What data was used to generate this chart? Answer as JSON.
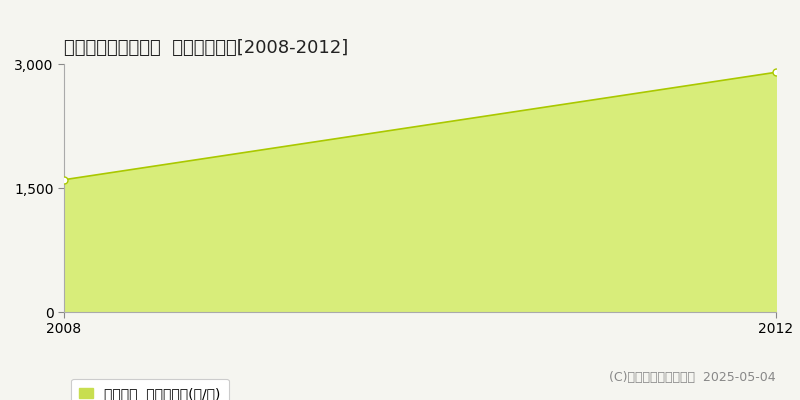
{
  "title": "東伯郡北栄町西高尾  林地価格推移[2008-2012]",
  "x": [
    2008,
    2012
  ],
  "y": [
    1600,
    2900
  ],
  "fill_color": "#d8ed7a",
  "fill_alpha": 1.0,
  "line_color": "#aac800",
  "marker_color": "#aac800",
  "marker_face": "white",
  "ylim": [
    0,
    3000
  ],
  "xlim": [
    2008,
    2012
  ],
  "yticks": [
    0,
    1500,
    3000
  ],
  "xticks": [
    2008,
    2012
  ],
  "grid_color": "#bbbbbb",
  "bg_color": "#f5f5f0",
  "plot_bg_color": "#f5f5f0",
  "legend_label": "林地価格  平均坪単価(円/坪)",
  "legend_color": "#c8de50",
  "copyright": "(C)土地価格ドットコム  2025-05-04",
  "title_fontsize": 13,
  "tick_fontsize": 10,
  "legend_fontsize": 10,
  "copyright_fontsize": 9
}
